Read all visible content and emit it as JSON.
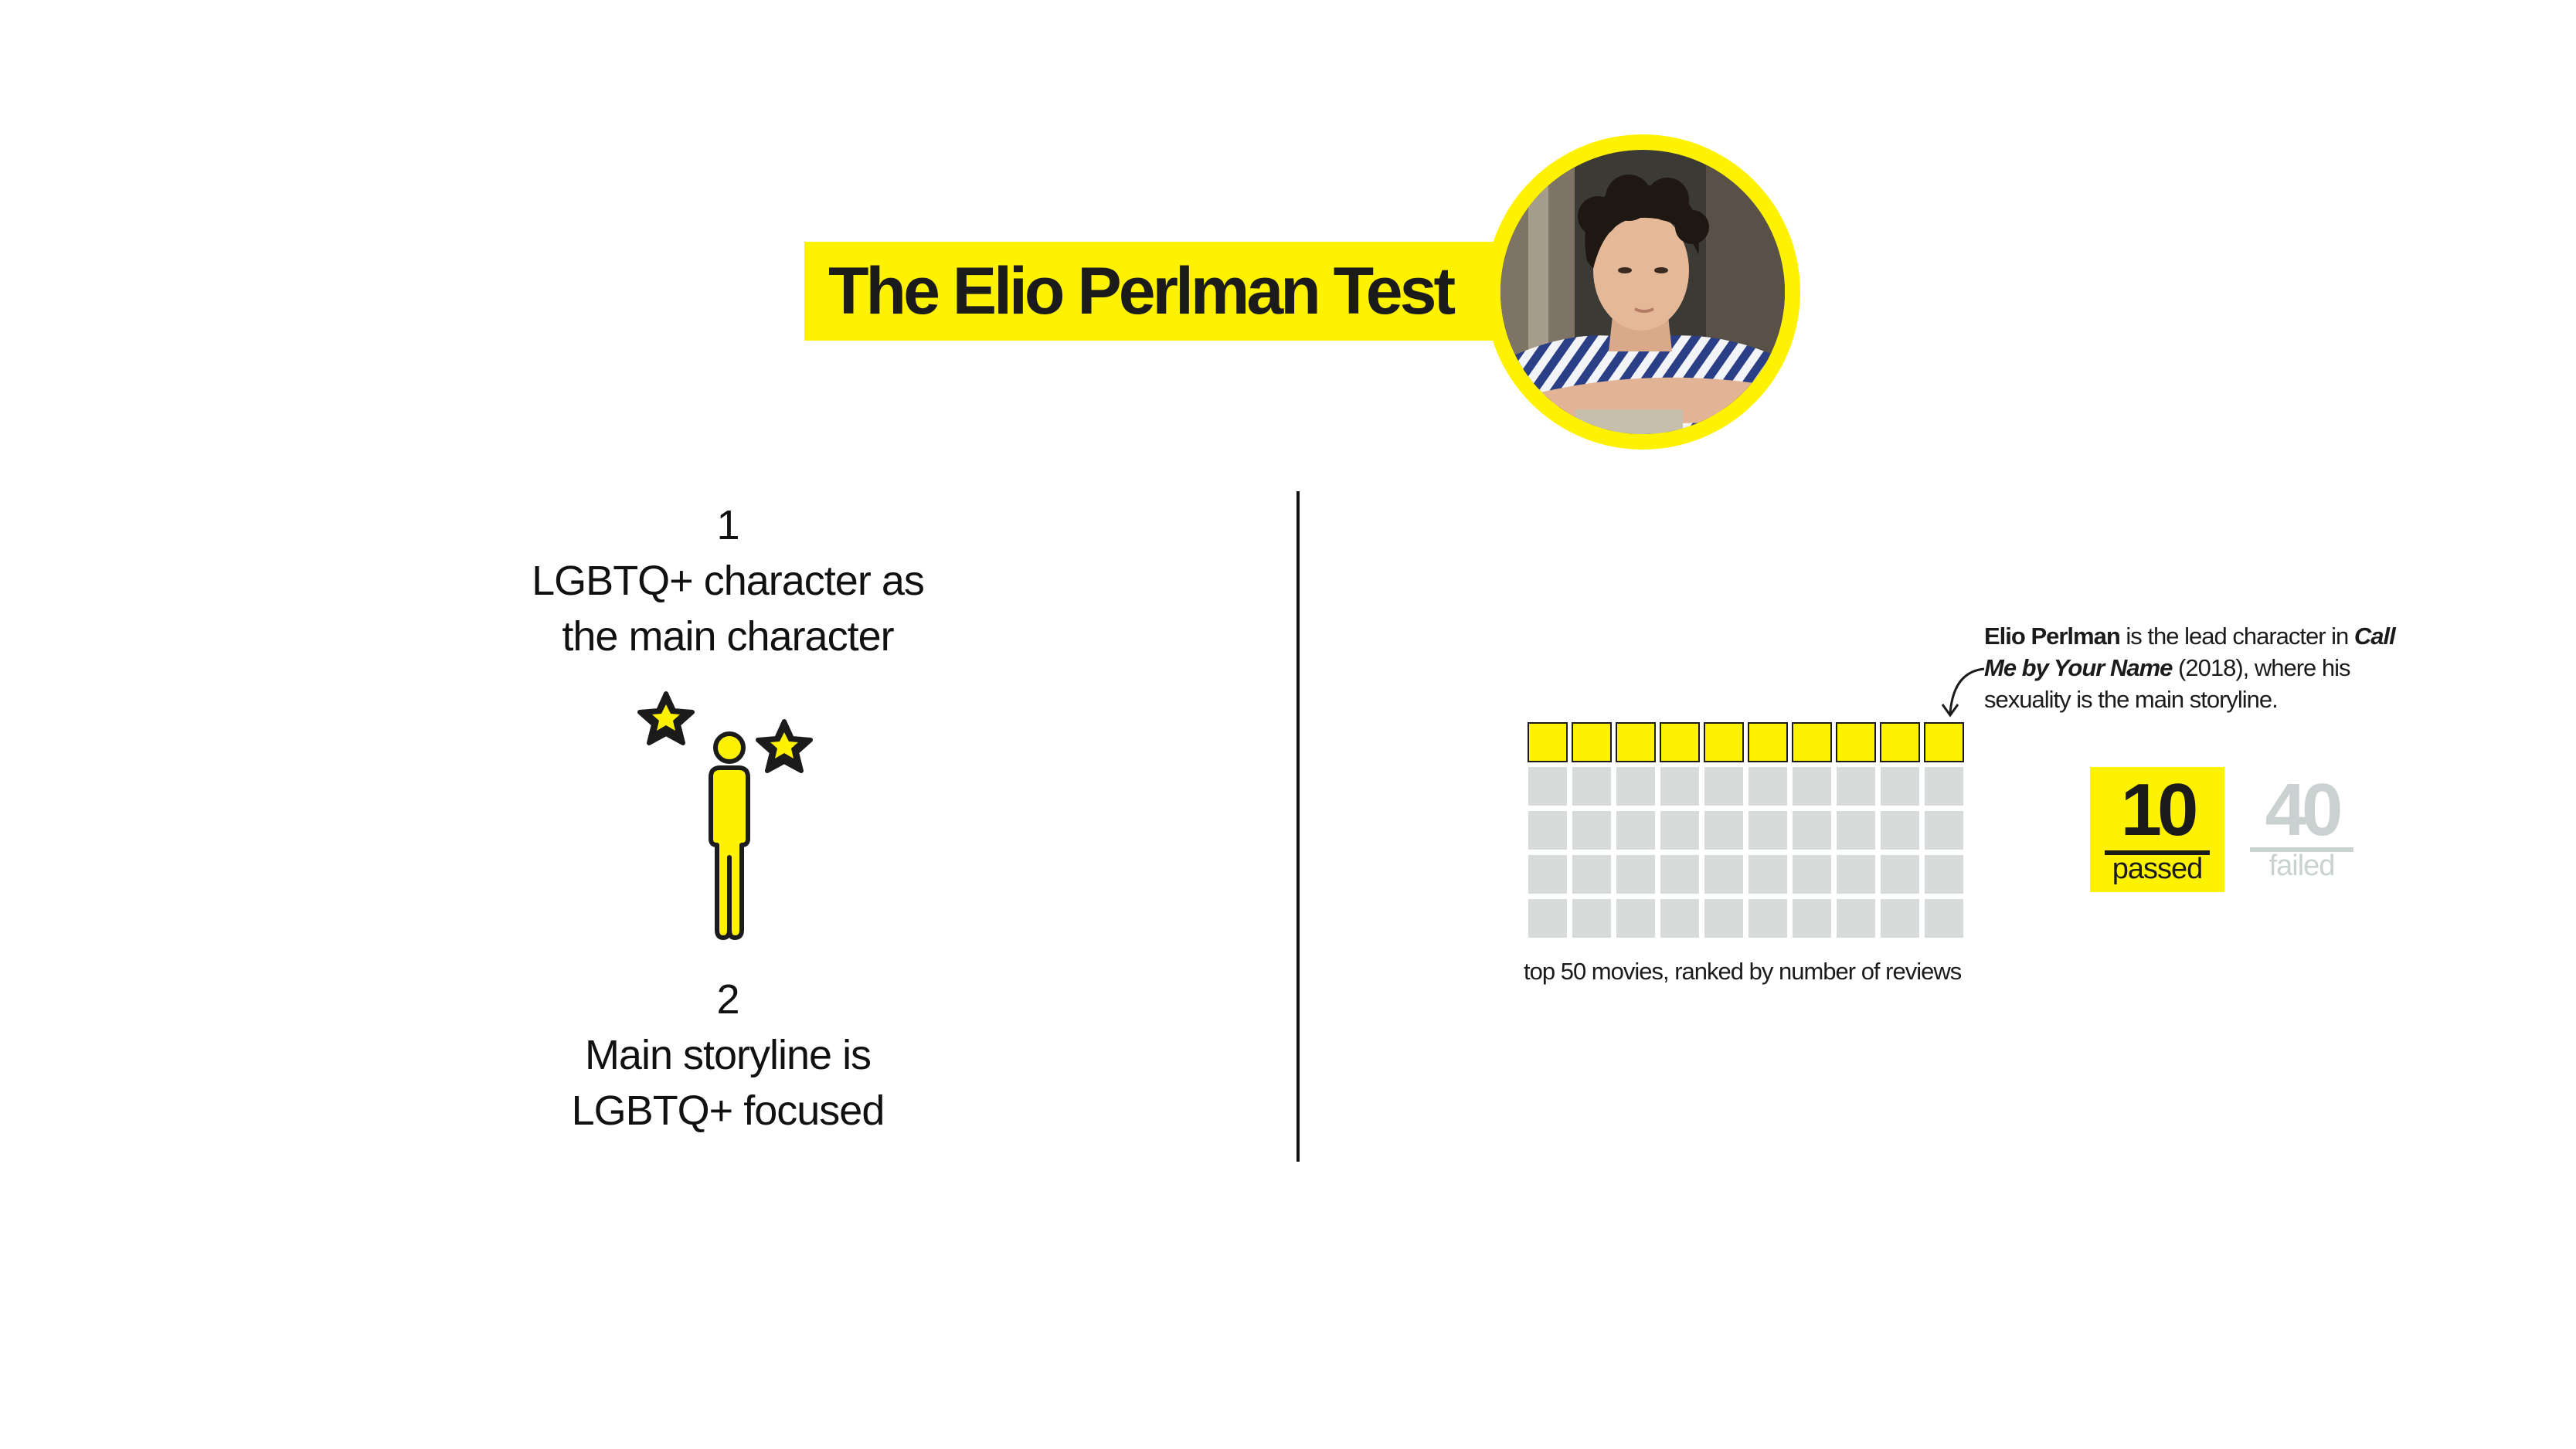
{
  "title": "The Elio Perlman Test",
  "criteria": [
    {
      "number": "1",
      "text": "LGBTQ+ character as the main character"
    },
    {
      "number": "2",
      "text": "Main storyline is LGBTQ+ focused"
    }
  ],
  "annotation": {
    "name": "Elio Perlman",
    "text1": " is the lead character in ",
    "film": "Call Me by Your Name",
    "text2": " (2018), where his sexuality is the main storyline."
  },
  "waffle": {
    "caption": "top 50 movies, ranked by number of reviews",
    "columns": 10,
    "total": 50,
    "passed_count": 10,
    "passed_color": "#fff200",
    "failed_color": "#d7dcdb"
  },
  "stats": {
    "passed_value": "10",
    "passed_label": "passed",
    "failed_value": "40",
    "failed_label": "failed"
  },
  "colors": {
    "accent": "#fff200",
    "ink": "#1b1b1b",
    "muted": "#c9d2d0"
  },
  "icons": {
    "portrait": "person-portrait-icon",
    "figure": "person-with-stars-icon"
  }
}
